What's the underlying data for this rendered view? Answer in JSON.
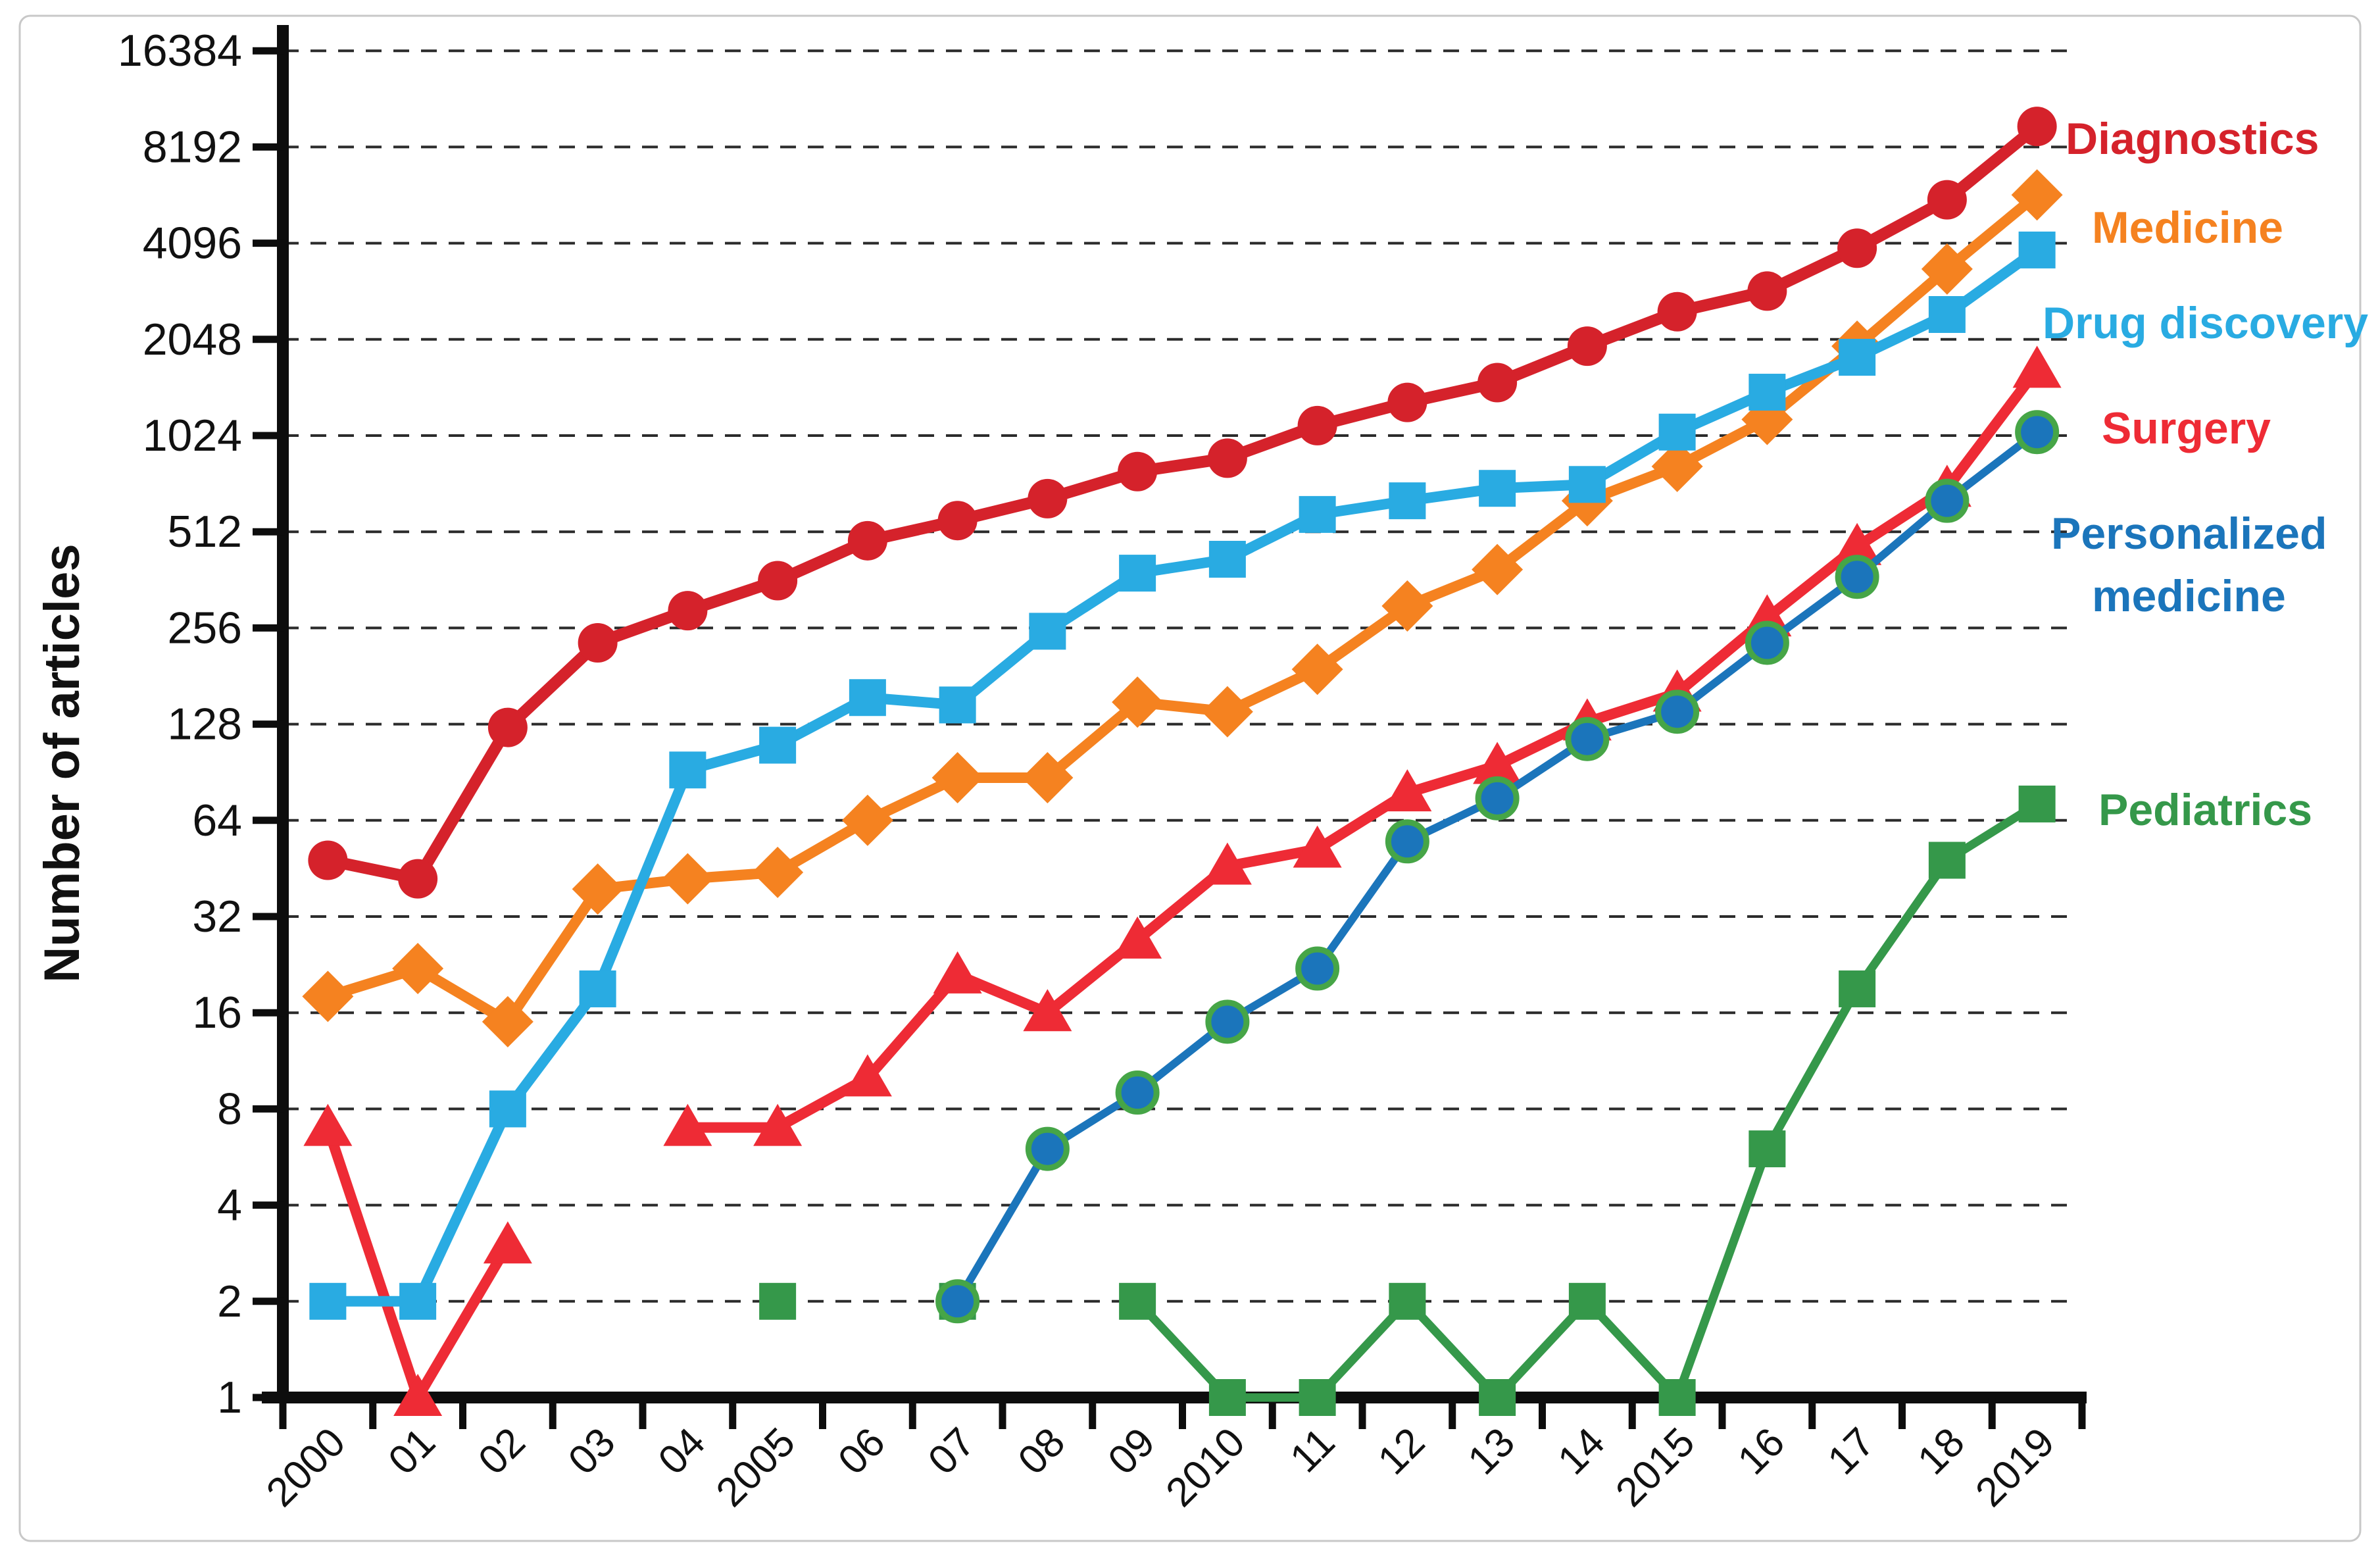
{
  "figure": {
    "background": "#ffffff",
    "border_color": "#c8c8c8",
    "axis_color": "#0d0d0d",
    "grid_color": "#2b2b2b"
  },
  "chart_data": {
    "type": "line",
    "title": "",
    "xlabel": "",
    "ylabel": "Number of articles",
    "y_scale": "log2",
    "ylim": [
      1,
      16384
    ],
    "grid": "horizontal-dashed",
    "legend_position": "right",
    "x_categories": [
      "2000",
      "01",
      "02",
      "03",
      "04",
      "2005",
      "06",
      "07",
      "08",
      "09",
      "2010",
      "11",
      "12",
      "13",
      "14",
      "2015",
      "16",
      "17",
      "18",
      "2019"
    ],
    "y_ticks": [
      16384,
      8192,
      4096,
      2048,
      1024,
      512,
      256,
      128,
      64,
      32,
      16,
      8,
      4,
      2,
      1
    ],
    "series": [
      {
        "name": "Diagnostics",
        "label_lines": [
          "Diagnostics"
        ],
        "color": "#d5222b",
        "marker": "circle",
        "values": [
          48,
          42,
          125,
          230,
          290,
          360,
          480,
          555,
          650,
          790,
          870,
          1100,
          1300,
          1500,
          1950,
          2500,
          2900,
          3950,
          5600,
          9500
        ]
      },
      {
        "name": "Medicine",
        "label_lines": [
          "Medicine"
        ],
        "color": "#f58220",
        "marker": "diamond",
        "values": [
          18,
          22,
          15,
          39,
          42,
          44,
          64,
          87,
          87,
          150,
          140,
          190,
          300,
          390,
          640,
          820,
          1150,
          1950,
          3400,
          5800
        ]
      },
      {
        "name": "Drug discovery",
        "label_lines": [
          "Drug discovery"
        ],
        "color": "#29abe2",
        "marker": "square",
        "values": [
          2,
          2,
          8,
          19,
          92,
          110,
          155,
          147,
          250,
          380,
          420,
          580,
          640,
          700,
          720,
          1050,
          1400,
          1800,
          2450,
          3900
        ]
      },
      {
        "name": "Surgery",
        "label_lines": [
          "Surgery"
        ],
        "color": "#ee2b35",
        "marker": "triangle",
        "values": [
          7,
          1,
          3,
          null,
          7,
          7,
          10,
          21,
          16,
          27,
          46,
          52,
          78,
          95,
          130,
          160,
          275,
          460,
          700,
          1650
        ]
      },
      {
        "name": "Personalized medicine",
        "label_lines": [
          "Personalized",
          "medicine"
        ],
        "color": "#1b75bb",
        "marker": "circle-outlined",
        "marker_outline": "#46a547",
        "values": [
          null,
          null,
          null,
          null,
          null,
          null,
          null,
          2,
          6,
          9,
          15,
          22,
          55,
          75,
          115,
          140,
          230,
          370,
          640,
          1050
        ]
      },
      {
        "name": "Pediatrics",
        "label_lines": [
          "Pediatrics"
        ],
        "color": "#35984a",
        "marker": "square",
        "values": [
          null,
          null,
          null,
          null,
          null,
          2,
          null,
          2,
          null,
          2,
          1,
          1,
          2,
          1,
          2,
          1,
          6,
          19,
          48,
          72
        ]
      }
    ]
  }
}
